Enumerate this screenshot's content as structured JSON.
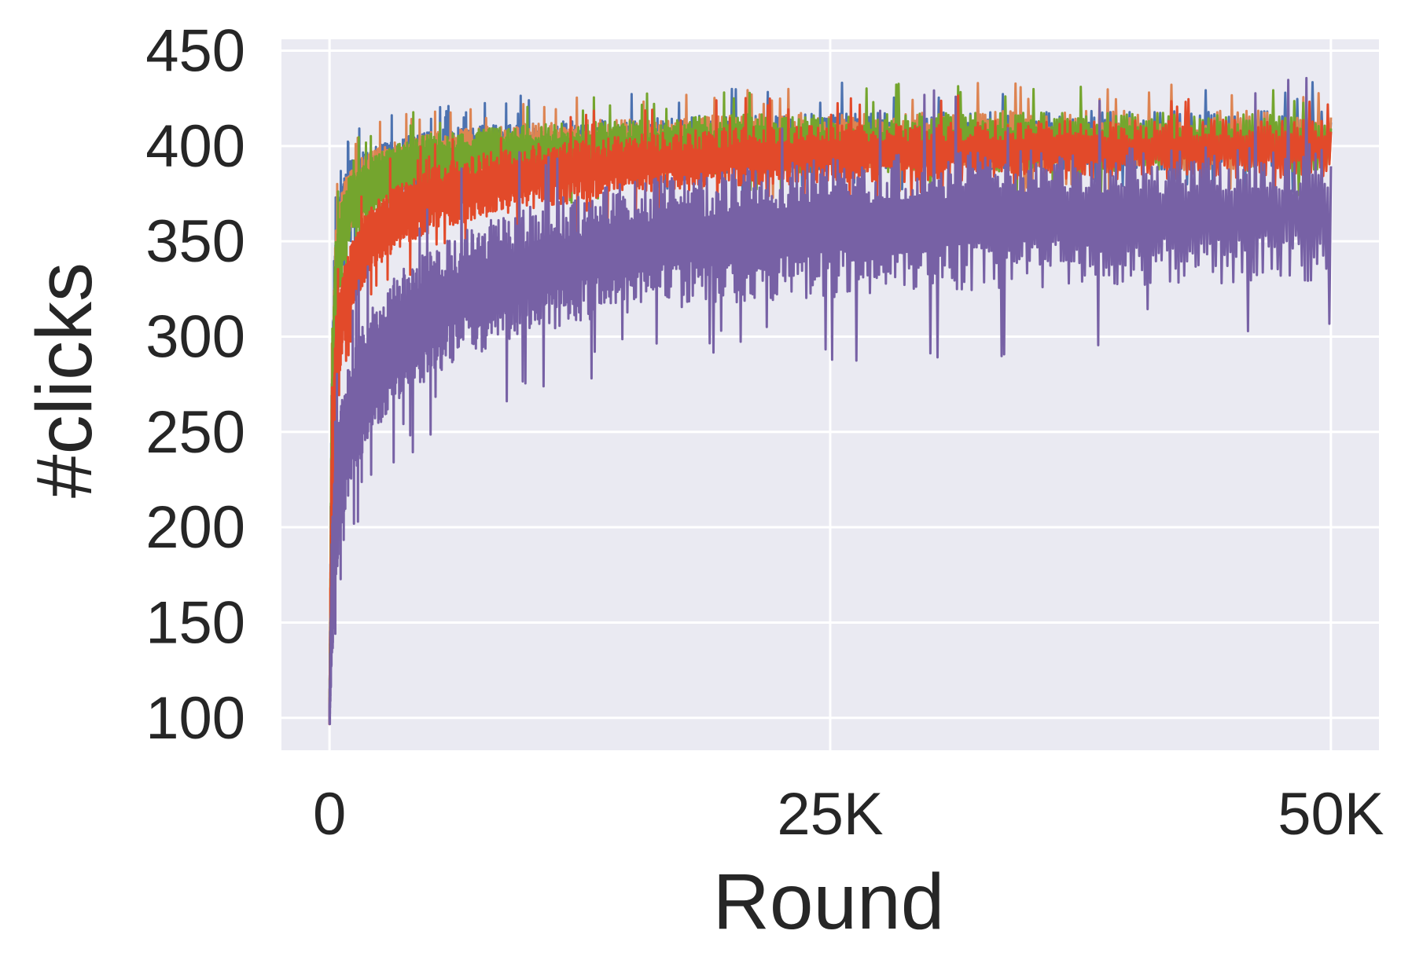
{
  "chart_data": {
    "type": "line",
    "title": "",
    "xlabel": "Round",
    "ylabel": "#clicks",
    "xlim": [
      -2400,
      52400
    ],
    "ylim": [
      83,
      456
    ],
    "x_ticks": [
      0,
      25000,
      50000
    ],
    "x_tick_labels": [
      "0",
      "25K",
      "50K"
    ],
    "y_ticks": [
      100,
      150,
      200,
      250,
      300,
      350,
      400,
      450
    ],
    "y_tick_labels": [
      "100",
      "150",
      "200",
      "250",
      "300",
      "350",
      "400",
      "450"
    ],
    "grid": true,
    "legend": "none",
    "background": "#eaeaf2",
    "series": [
      {
        "color": "#4c72b0",
        "x": [
          0,
          100,
          300,
          600,
          1000,
          1500,
          2000,
          3000,
          4000,
          5000,
          6000,
          8000,
          10000,
          15000,
          20000,
          25000,
          30000,
          35000,
          40000,
          45000,
          50000
        ],
        "mean": [
          100,
          250,
          340,
          362,
          375,
          380,
          383,
          388,
          391,
          393,
          395,
          397,
          398,
          400,
          401,
          402,
          402,
          403,
          403,
          403,
          403
        ],
        "spread": [
          2,
          20,
          16,
          14,
          13,
          12,
          12,
          11,
          11,
          11,
          11,
          11,
          11,
          11,
          12,
          12,
          12,
          12,
          12,
          12,
          12
        ]
      },
      {
        "color": "#dd8452",
        "x": [
          0,
          100,
          300,
          600,
          1000,
          1500,
          2000,
          3000,
          4000,
          5000,
          6000,
          8000,
          10000,
          15000,
          20000,
          25000,
          30000,
          35000,
          40000,
          45000,
          50000
        ],
        "mean": [
          100,
          245,
          335,
          358,
          372,
          378,
          382,
          387,
          390,
          393,
          394,
          396,
          398,
          400,
          401,
          402,
          402,
          403,
          403,
          403,
          403
        ],
        "spread": [
          2,
          20,
          16,
          14,
          13,
          12,
          12,
          11,
          11,
          11,
          11,
          11,
          11,
          11,
          12,
          12,
          12,
          12,
          12,
          12,
          12
        ]
      },
      {
        "color": "#74a52e",
        "x": [
          0,
          100,
          300,
          600,
          1000,
          1500,
          2000,
          3000,
          4000,
          5000,
          6000,
          8000,
          10000,
          15000,
          20000,
          25000,
          30000,
          35000,
          40000,
          45000,
          50000
        ],
        "mean": [
          100,
          240,
          330,
          352,
          368,
          375,
          379,
          385,
          389,
          392,
          393,
          395,
          397,
          399,
          401,
          401,
          402,
          402,
          402,
          402,
          402
        ],
        "spread": [
          2,
          20,
          16,
          14,
          13,
          12,
          12,
          11,
          11,
          11,
          11,
          11,
          11,
          11,
          12,
          12,
          12,
          12,
          12,
          12,
          12
        ]
      },
      {
        "color": "#e24a2a",
        "x": [
          0,
          100,
          300,
          600,
          1000,
          1500,
          2000,
          3000,
          4000,
          5000,
          6000,
          8000,
          10000,
          15000,
          20000,
          25000,
          30000,
          35000,
          40000,
          45000,
          50000
        ],
        "mean": [
          100,
          210,
          285,
          310,
          330,
          342,
          350,
          360,
          366,
          371,
          375,
          380,
          384,
          390,
          394,
          396,
          397,
          398,
          398,
          399,
          399
        ],
        "spread": [
          2,
          22,
          18,
          16,
          15,
          14,
          14,
          13,
          13,
          13,
          13,
          13,
          13,
          12,
          12,
          12,
          12,
          12,
          12,
          12,
          12
        ]
      },
      {
        "color": "#7761a5",
        "x": [
          0,
          100,
          300,
          600,
          1000,
          1500,
          2000,
          3000,
          4000,
          5000,
          6000,
          8000,
          10000,
          15000,
          20000,
          25000,
          30000,
          35000,
          40000,
          45000,
          50000
        ],
        "mean": [
          100,
          160,
          205,
          235,
          255,
          268,
          280,
          295,
          305,
          312,
          318,
          328,
          335,
          347,
          353,
          357,
          360,
          362,
          363,
          364,
          365
        ],
        "spread": [
          3,
          28,
          28,
          27,
          27,
          26,
          26,
          26,
          26,
          26,
          26,
          26,
          26,
          27,
          27,
          28,
          28,
          28,
          28,
          28,
          28
        ]
      }
    ]
  }
}
